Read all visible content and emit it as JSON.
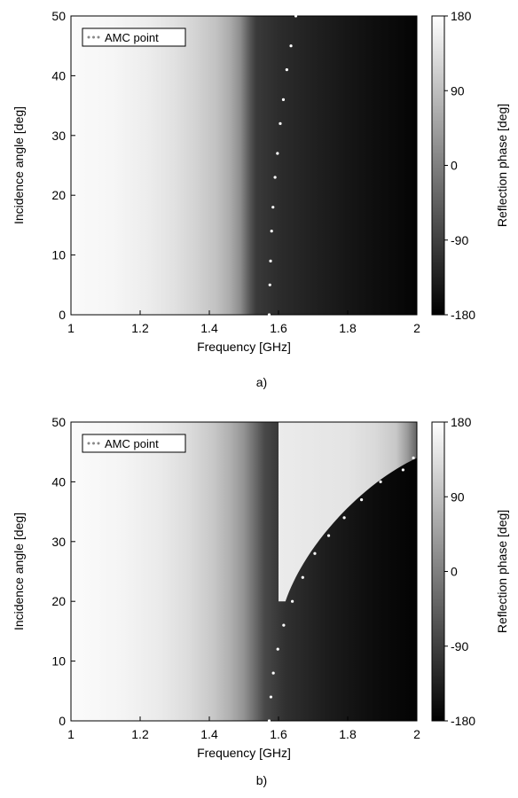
{
  "chart_data": [
    {
      "panel": "a)",
      "type": "heatmap",
      "xlabel": "Frequency [GHz]",
      "ylabel": "Incidence angle [deg]",
      "xlim": [
        1,
        2
      ],
      "ylim": [
        0,
        50
      ],
      "xticks": [
        "1",
        "1.2",
        "1.4",
        "1.6",
        "1.8",
        "2"
      ],
      "yticks": [
        "0",
        "10",
        "20",
        "30",
        "40",
        "50"
      ],
      "colorbar": {
        "label": "Reflection phase [deg]",
        "ticks": [
          "180",
          "90",
          "0",
          "-90",
          "-180"
        ],
        "range": [
          -180,
          180
        ]
      },
      "legend": {
        "label": "AMC point",
        "placement": "top-left"
      },
      "series": [
        {
          "name": "AMC point",
          "x": [
            1.573,
            1.575,
            1.577,
            1.58,
            1.584,
            1.59,
            1.597,
            1.605,
            1.614,
            1.624,
            1.636,
            1.65
          ],
          "y": [
            0,
            5,
            9,
            14,
            18,
            23,
            27,
            32,
            36,
            41,
            45,
            50
          ]
        }
      ]
    },
    {
      "panel": "b)",
      "type": "heatmap",
      "xlabel": "Frequency [GHz]",
      "ylabel": "Incidence angle [deg]",
      "xlim": [
        1,
        2
      ],
      "ylim": [
        0,
        50
      ],
      "xticks": [
        "1",
        "1.2",
        "1.4",
        "1.6",
        "1.8",
        "2"
      ],
      "yticks": [
        "0",
        "10",
        "20",
        "30",
        "40",
        "50"
      ],
      "colorbar": {
        "label": "Reflection phase [deg]",
        "ticks": [
          "180",
          "90",
          "0",
          "-90",
          "-180"
        ],
        "range": [
          -180,
          180
        ]
      },
      "legend": {
        "label": "AMC point",
        "placement": "top-left"
      },
      "series": [
        {
          "name": "AMC point",
          "x": [
            1.573,
            1.578,
            1.585,
            1.598,
            1.615,
            1.64,
            1.67,
            1.705,
            1.745,
            1.79,
            1.84,
            1.895,
            1.96,
            1.99
          ],
          "y": [
            0,
            4,
            8,
            12,
            16,
            20,
            24,
            28,
            31,
            34,
            37,
            40,
            42,
            44
          ]
        }
      ]
    }
  ],
  "captions": [
    "a)",
    "b)"
  ]
}
